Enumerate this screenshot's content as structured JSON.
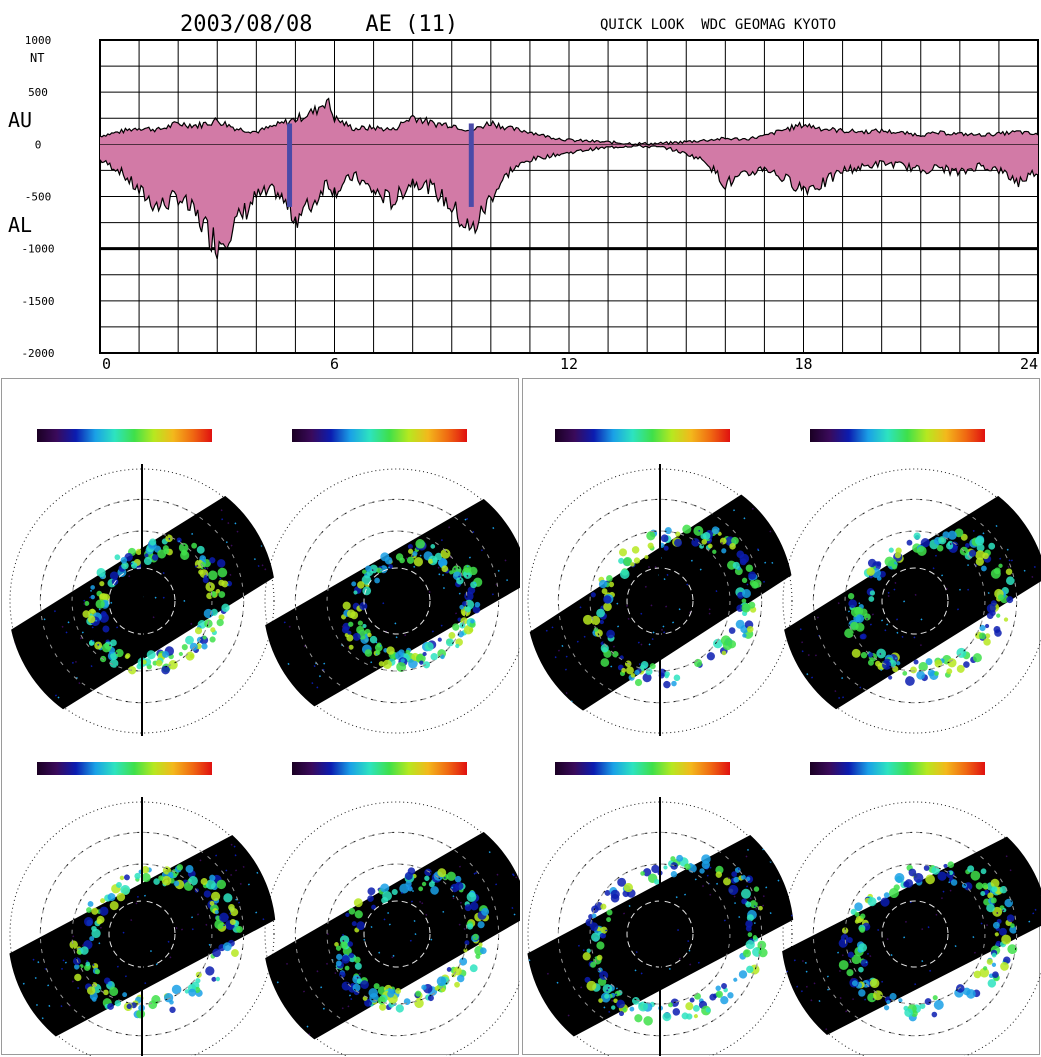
{
  "chart_data": [
    {
      "type": "area",
      "title": "2003/08/08    AE (11)",
      "subtitle": "QUICK LOOK  WDC GEOMAG KYOTO",
      "xlabel": "",
      "ylabel": "NT",
      "series_labels": [
        "AU",
        "AL"
      ],
      "ylim": [
        -2000,
        1000
      ],
      "xlim": [
        0,
        24
      ],
      "x_ticks": [
        "0",
        "6",
        "12",
        "18",
        "24"
      ],
      "y_ticks": [
        "1000",
        "500",
        "0",
        "-500",
        "-1000",
        "-1500",
        "-2000"
      ],
      "grid": true,
      "fill_color": "#d27aa6",
      "marker_color": "#4a4aa8",
      "markers_x": [
        4.85,
        9.5
      ],
      "series": [
        {
          "name": "AU",
          "x": [
            0,
            0.5,
            1,
            1.5,
            2,
            2.5,
            3,
            3.5,
            4,
            4.5,
            5,
            5.5,
            5.8,
            6,
            6.5,
            7,
            7.5,
            8,
            8.5,
            9,
            9.5,
            10,
            10.5,
            11,
            11.5,
            12,
            12.5,
            13,
            13.5,
            14,
            14.5,
            15,
            15.5,
            16,
            16.5,
            17,
            17.5,
            18,
            18.5,
            19,
            19.5,
            20,
            20.5,
            21,
            21.5,
            22,
            22.5,
            23,
            23.5,
            24
          ],
          "values": [
            80,
            120,
            160,
            140,
            200,
            180,
            230,
            150,
            120,
            180,
            240,
            320,
            430,
            250,
            150,
            160,
            140,
            270,
            200,
            190,
            130,
            210,
            150,
            120,
            70,
            40,
            30,
            20,
            10,
            5,
            10,
            25,
            40,
            55,
            50,
            80,
            140,
            190,
            150,
            130,
            120,
            130,
            110,
            90,
            110,
            100,
            90,
            100,
            120,
            90
          ]
        },
        {
          "name": "AL",
          "x": [
            0,
            0.5,
            1,
            1.5,
            2,
            2.5,
            3,
            3.5,
            4,
            4.5,
            5,
            5.5,
            5.8,
            6,
            6.5,
            7,
            7.5,
            8,
            8.5,
            9,
            9.5,
            10,
            10.5,
            11,
            11.5,
            12,
            12.5,
            13,
            13.5,
            14,
            14.5,
            15,
            15.5,
            16,
            16.5,
            17,
            17.5,
            18,
            18.5,
            19,
            19.5,
            20,
            20.5,
            21,
            21.5,
            22,
            22.5,
            23,
            23.5,
            24
          ],
          "values": [
            -150,
            -250,
            -450,
            -600,
            -500,
            -700,
            -950,
            -750,
            -500,
            -450,
            -700,
            -550,
            -350,
            -450,
            -300,
            -450,
            -550,
            -350,
            -420,
            -600,
            -850,
            -500,
            -250,
            -150,
            -110,
            -80,
            -50,
            -30,
            -15,
            -20,
            -35,
            -90,
            -160,
            -380,
            -300,
            -220,
            -330,
            -420,
            -380,
            -250,
            -220,
            -180,
            -200,
            -250,
            -220,
            -280,
            -200,
            -250,
            -360,
            -250
          ]
        }
      ]
    },
    {
      "type": "heatmap",
      "title": "",
      "images": [
        {
          "id": "tl-north",
          "group": "left"
        },
        {
          "id": "tl-south",
          "group": "left"
        },
        {
          "id": "bl-north",
          "group": "left"
        },
        {
          "id": "bl-south",
          "group": "left"
        },
        {
          "id": "tr-north",
          "group": "right"
        },
        {
          "id": "tr-south",
          "group": "right"
        },
        {
          "id": "br-north",
          "group": "right"
        },
        {
          "id": "br-south",
          "group": "right"
        }
      ],
      "colormap": [
        "#1a0023",
        "#3a0a5a",
        "#0b1cb0",
        "#1aa0e6",
        "#2de3c0",
        "#3fe04a",
        "#b6e820",
        "#f3b81c",
        "#f06a12",
        "#e01010"
      ]
    }
  ]
}
